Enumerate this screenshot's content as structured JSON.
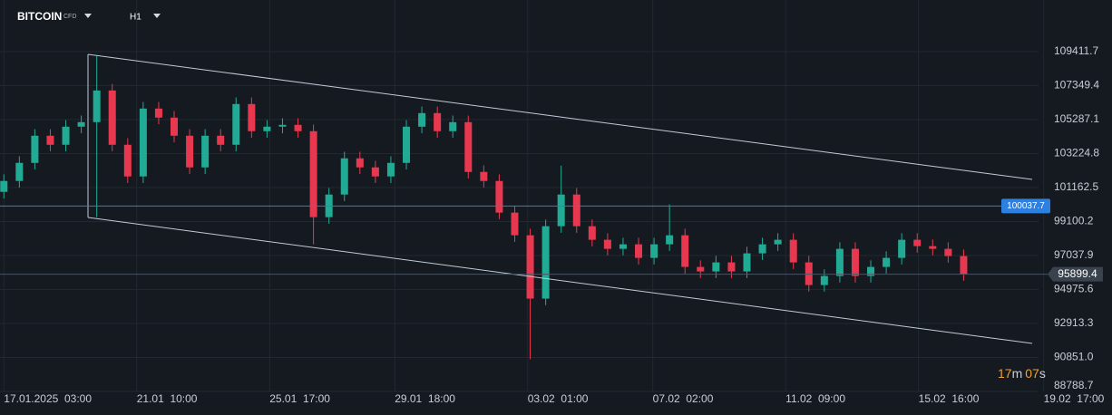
{
  "chart_data": {
    "type": "candlestick",
    "symbol": "BITCOIN",
    "instrument": "CFD",
    "timeframe": "H1",
    "countdown": [
      "17",
      "m",
      "07",
      "s"
    ],
    "x": [
      0,
      12,
      24,
      36,
      48,
      60,
      72,
      84,
      96,
      108,
      120,
      132,
      144,
      156,
      168,
      180,
      192,
      204,
      216,
      228,
      240,
      252,
      264,
      276,
      288,
      300,
      312,
      324,
      336,
      348,
      360,
      372,
      384,
      396,
      408,
      420,
      432,
      444,
      456,
      468,
      480,
      492,
      504,
      516,
      528,
      540,
      552,
      564,
      576,
      588,
      600,
      612,
      624,
      636,
      648,
      660,
      672,
      684,
      696,
      708,
      720,
      732,
      744
    ],
    "open": [
      100900,
      101560,
      102658,
      104305,
      103756,
      104854,
      105128,
      107050,
      103756,
      101835,
      105952,
      105403,
      104305,
      102384,
      104305,
      103756,
      106227,
      104580,
      104854,
      104964,
      104580,
      99364,
      100737,
      102933,
      102384,
      101835,
      102658,
      104854,
      105678,
      104580,
      105128,
      102109,
      101560,
      99639,
      98266,
      94423,
      98815,
      100737,
      98815,
      97992,
      97443,
      97717,
      96894,
      97717,
      98266,
      96345,
      96070,
      96619,
      96070,
      97168,
      97717,
      97992,
      96619,
      95247,
      95796,
      97443,
      95796,
      96345,
      96894,
      97992,
      97607,
      97443,
      97004
    ],
    "high": [
      101960,
      103058,
      104705,
      104705,
      105254,
      105528,
      109136,
      107450,
      104156,
      106352,
      106352,
      105803,
      104705,
      104705,
      104705,
      106627,
      106627,
      105254,
      105364,
      105364,
      104980,
      101137,
      103333,
      103333,
      102784,
      103058,
      105254,
      106078,
      106078,
      105528,
      105528,
      102509,
      101960,
      100039,
      98666,
      99215,
      102494,
      101137,
      99215,
      98392,
      98117,
      98117,
      98117,
      100133,
      98666,
      96745,
      97019,
      97019,
      97568,
      98117,
      98392,
      98392,
      97019,
      96196,
      97843,
      97843,
      96745,
      97294,
      98392,
      98392,
      98007,
      97843,
      97404
    ],
    "low": [
      100500,
      101160,
      102258,
      103356,
      103356,
      104454,
      99364,
      103356,
      101435,
      101435,
      105003,
      103905,
      101984,
      101984,
      103356,
      103356,
      104180,
      104180,
      104454,
      104180,
      97717,
      98964,
      100337,
      101984,
      101435,
      101435,
      102258,
      104454,
      104180,
      104180,
      101709,
      101160,
      99239,
      97866,
      90745,
      94023,
      98415,
      98415,
      97592,
      97043,
      97043,
      96494,
      96494,
      97317,
      95945,
      95670,
      95670,
      95670,
      95670,
      96768,
      97317,
      96219,
      94847,
      94847,
      95396,
      95396,
      95396,
      95945,
      96494,
      97207,
      97043,
      96604,
      95499
    ],
    "close": [
      101560,
      102658,
      104305,
      103756,
      104854,
      105128,
      107050,
      103756,
      101835,
      105952,
      105403,
      104305,
      102384,
      104305,
      103756,
      106227,
      104580,
      104854,
      104964,
      104580,
      99364,
      100737,
      102933,
      102384,
      101835,
      102658,
      104854,
      105678,
      104580,
      105128,
      102109,
      101560,
      99639,
      98266,
      94423,
      98815,
      100737,
      98815,
      97992,
      97443,
      97717,
      96894,
      97717,
      98266,
      96345,
      96070,
      96619,
      96070,
      97168,
      97717,
      97992,
      96619,
      95247,
      95796,
      97443,
      95796,
      96345,
      96894,
      97992,
      97607,
      97443,
      97004,
      95899
    ],
    "up_color": "#22ab94",
    "down_color": "#e8384f",
    "xlim": [
      -3,
      859
    ],
    "xticks": [
      {
        "value": 0,
        "label": "17.01.2025  03:00"
      },
      {
        "value": 103,
        "label": "21.01  10:00"
      },
      {
        "value": 206,
        "label": "25.01  17:00"
      },
      {
        "value": 303,
        "label": "29.01  18:00"
      },
      {
        "value": 406,
        "label": "03.02  01:00"
      },
      {
        "value": 503,
        "label": "07.02  02:00"
      },
      {
        "value": 606,
        "label": "11.02  09:00"
      },
      {
        "value": 709,
        "label": "15.02  16:00"
      },
      {
        "value": 806,
        "label": "19.02  17:00"
      }
    ],
    "ylim": [
      88790,
      112540
    ],
    "yticks": [
      109411.7,
      107349.4,
      105287.1,
      103224.8,
      101162.5,
      99100.2,
      97037.9,
      94975.6,
      92913.3,
      {
        "value": 90851,
        "label": "90851.0"
      },
      88788.7
    ],
    "grid": true,
    "horizontal_line": {
      "value": 100037.7,
      "color": "#2d7fe0"
    },
    "last_price": {
      "value": 95899.4,
      "color": "#4a5563"
    }
  }
}
